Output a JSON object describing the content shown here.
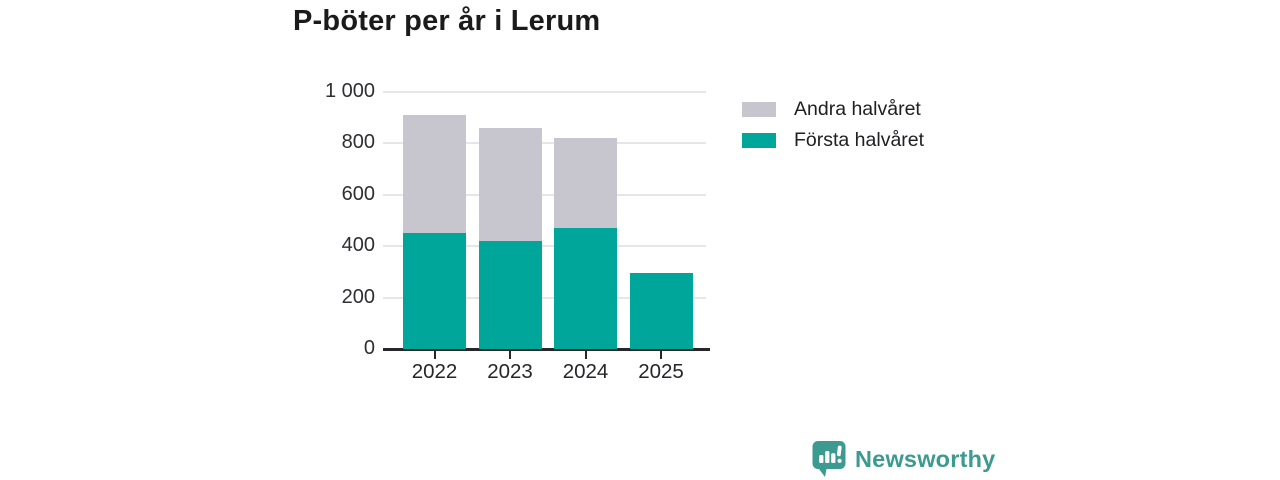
{
  "title": "P-böter per år i Lerum",
  "brand": {
    "name": "Newsworthy"
  },
  "colors": {
    "first_half": "#00a69a",
    "second_half": "#c7c6ce",
    "grid": "#e6e5e9",
    "axis": "#26262b",
    "brand_teal": "#3d9a91"
  },
  "legend": {
    "items": [
      {
        "label": "Andra halvåret",
        "color": "#c7c6ce"
      },
      {
        "label": "Första halvåret",
        "color": "#00a69a"
      }
    ]
  },
  "chart_data": {
    "type": "bar",
    "stacked": true,
    "title": "P-böter per år i Lerum",
    "categories": [
      "2022",
      "2023",
      "2024",
      "2025"
    ],
    "series": [
      {
        "name": "Första halvåret",
        "color": "#00a69a",
        "values": [
          450,
          420,
          470,
          295
        ]
      },
      {
        "name": "Andra halvåret",
        "color": "#c7c6ce",
        "values": [
          460,
          440,
          350,
          0
        ]
      }
    ],
    "xlabel": "",
    "ylabel": "",
    "ylim": [
      0,
      1000
    ],
    "yticks": [
      0,
      200,
      400,
      600,
      800,
      1000
    ],
    "ytick_labels": [
      "0",
      "200",
      "400",
      "600",
      "800",
      "1 000"
    ],
    "grid": true,
    "legend_position": "right"
  }
}
